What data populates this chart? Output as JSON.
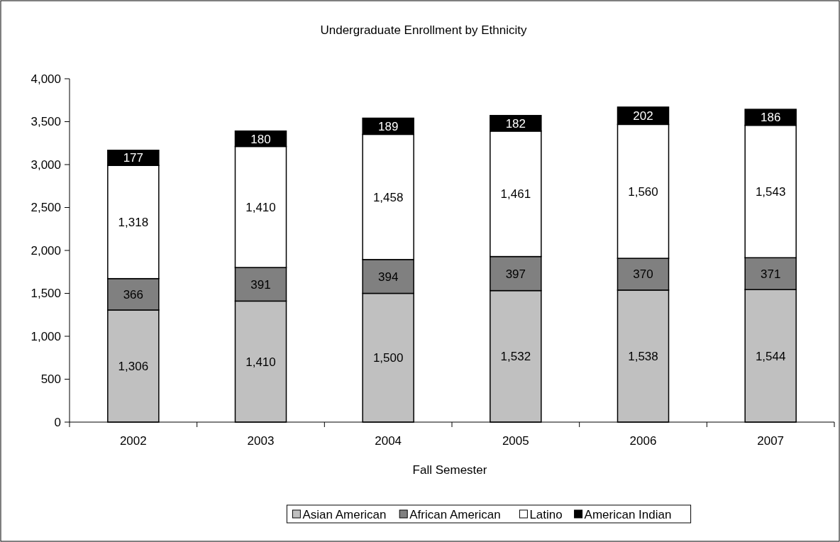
{
  "chart_data": {
    "type": "bar",
    "title": "Undergraduate Enrollment by Ethnicity",
    "xlabel": "Fall Semester",
    "categories": [
      "2002",
      "2003",
      "2004",
      "2005",
      "2006",
      "2007"
    ],
    "stacked": true,
    "legend": "bottom",
    "ylim": [
      0,
      4000
    ],
    "yticks": [
      {
        "value": 0,
        "label": "0"
      },
      {
        "value": 500,
        "label": "500"
      },
      {
        "value": 1000,
        "label": "1,000"
      },
      {
        "value": 1500,
        "label": "1,500"
      },
      {
        "value": 2000,
        "label": "2,000"
      },
      {
        "value": 2500,
        "label": "2,500"
      },
      {
        "value": 3000,
        "label": "3,000"
      },
      {
        "value": 3500,
        "label": "3,500"
      },
      {
        "value": 4000,
        "label": "4,000"
      }
    ],
    "series": [
      {
        "name": "Asian American",
        "color": "#c0c0c0",
        "values": [
          1306,
          1410,
          1500,
          1532,
          1538,
          1544
        ],
        "value_labels": [
          "1,306",
          "1,410",
          "1,500",
          "1,532",
          "1,538",
          "1,544"
        ]
      },
      {
        "name": "African American",
        "color": "#808080",
        "values": [
          366,
          391,
          394,
          397,
          370,
          371
        ],
        "value_labels": [
          "366",
          "391",
          "394",
          "397",
          "370",
          "371"
        ]
      },
      {
        "name": "Latino",
        "color": "#ffffff",
        "values": [
          1318,
          1410,
          1458,
          1461,
          1560,
          1543
        ],
        "value_labels": [
          "1,318",
          "1,410",
          "1,458",
          "1,461",
          "1,560",
          "1,543"
        ]
      },
      {
        "name": "American Indian",
        "color": "#000000",
        "values": [
          177,
          180,
          189,
          182,
          202,
          186
        ],
        "value_labels": [
          "177",
          "180",
          "189",
          "182",
          "202",
          "186"
        ]
      }
    ]
  }
}
